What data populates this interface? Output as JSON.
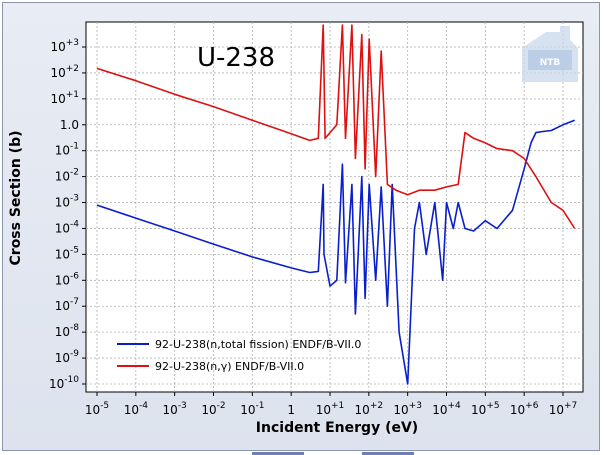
{
  "chart_data": {
    "type": "line",
    "title": "U-238",
    "xlabel": "Incident Energy (eV)",
    "ylabel": "Cross Section (b)",
    "x_scale": "log",
    "y_scale": "log",
    "xlim": [
      1e-05,
      30000000.0
    ],
    "ylim": [
      1e-10,
      3000
    ],
    "grid": true,
    "legend_position": "bottom-left",
    "x_ticks": [
      {
        "base": "10",
        "exp": "-5"
      },
      {
        "base": "10",
        "exp": "-4"
      },
      {
        "base": "10",
        "exp": "-3"
      },
      {
        "base": "10",
        "exp": "-2"
      },
      {
        "base": "10",
        "exp": "-1"
      },
      {
        "base": "1",
        "exp": ""
      },
      {
        "base": "10",
        "exp": "+1"
      },
      {
        "base": "10",
        "exp": "+2"
      },
      {
        "base": "10",
        "exp": "+3"
      },
      {
        "base": "10",
        "exp": "+4"
      },
      {
        "base": "10",
        "exp": "+5"
      },
      {
        "base": "10",
        "exp": "+6"
      },
      {
        "base": "10",
        "exp": "+7"
      }
    ],
    "y_ticks": [
      {
        "base": "10",
        "exp": "+3"
      },
      {
        "base": "10",
        "exp": "+2"
      },
      {
        "base": "10",
        "exp": "+1"
      },
      {
        "base": "1.0",
        "exp": ""
      },
      {
        "base": "10",
        "exp": "-1"
      },
      {
        "base": "10",
        "exp": "-2"
      },
      {
        "base": "10",
        "exp": "-3"
      },
      {
        "base": "10",
        "exp": "-4"
      },
      {
        "base": "10",
        "exp": "-5"
      },
      {
        "base": "10",
        "exp": "-6"
      },
      {
        "base": "10",
        "exp": "-7"
      },
      {
        "base": "10",
        "exp": "-8"
      },
      {
        "base": "10",
        "exp": "-9"
      },
      {
        "base": "10",
        "exp": "-10"
      }
    ],
    "series": [
      {
        "name": "92-U-238(n,total fission) ENDF/B-VII.0",
        "color": "#0a1fcc",
        "x": [
          1e-05,
          0.0001,
          0.001,
          0.01,
          0.1,
          1,
          3,
          5,
          6.67,
          7,
          10,
          15,
          20.9,
          25,
          36.7,
          45,
          66,
          80,
          102.5,
          150,
          208,
          300,
          400,
          600,
          1000,
          1500,
          2000,
          3000,
          5000,
          8000,
          10000,
          15000,
          20000,
          30000,
          50000,
          100000,
          200000,
          500000,
          1000000,
          1500000,
          2000000,
          3000000,
          5000000,
          10000000,
          20000000
        ],
        "y": [
          0.0008,
          0.00025,
          8e-05,
          2.5e-05,
          8e-06,
          3e-06,
          2e-06,
          2.2e-06,
          0.005,
          1e-05,
          6e-07,
          1e-06,
          0.03,
          8e-07,
          0.005,
          5e-08,
          0.01,
          2e-07,
          0.005,
          1e-06,
          0.004,
          1e-07,
          0.005,
          1e-08,
          1e-10,
          0.0001,
          0.001,
          1e-05,
          0.001,
          1e-06,
          0.001,
          0.0001,
          0.001,
          0.0001,
          8e-05,
          0.0002,
          0.0001,
          0.0005,
          0.02,
          0.2,
          0.5,
          0.55,
          0.6,
          1.0,
          1.5
        ]
      },
      {
        "name": "92-U-238(n,γ) ENDF/B-VII.0",
        "color": "#dd1111",
        "x": [
          1e-05,
          0.0001,
          0.001,
          0.01,
          0.1,
          1,
          3,
          5,
          6.67,
          7.5,
          10,
          15,
          20.9,
          25,
          36.7,
          45,
          66,
          80,
          102.5,
          150,
          208,
          300,
          500,
          1000,
          2000,
          5000,
          10000,
          20000,
          30000,
          50000,
          100000,
          200000,
          500000,
          1000000,
          2000000,
          5000000,
          10000000,
          20000000
        ],
        "y": [
          150,
          50,
          15,
          5,
          1.5,
          0.45,
          0.25,
          0.3,
          7000,
          0.3,
          0.5,
          1.0,
          7000,
          0.3,
          7000,
          0.05,
          3000,
          0.02,
          2000,
          0.01,
          700,
          0.005,
          0.003,
          0.002,
          0.003,
          0.003,
          0.004,
          0.005,
          0.5,
          0.3,
          0.2,
          0.12,
          0.1,
          0.05,
          0.01,
          0.001,
          0.0005,
          0.0001
        ]
      }
    ]
  },
  "watermark": {
    "text": "NTB"
  },
  "colors": {
    "plot_bg": "#ffffff",
    "frame_bg": "#e2e7f0",
    "grid": "#b0b0b0"
  }
}
